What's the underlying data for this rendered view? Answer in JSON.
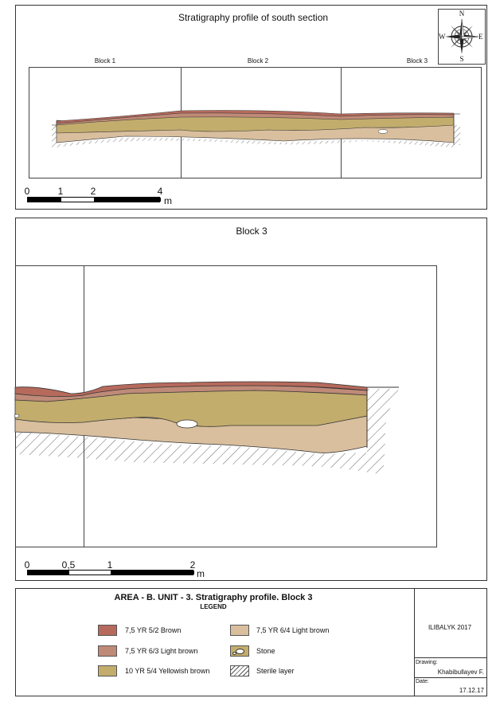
{
  "top_panel": {
    "title": "Stratigraphy profile of south section",
    "block_labels": [
      "Block 1",
      "Block 2",
      "Block 3"
    ],
    "scale": {
      "ticks": [
        "0",
        "1",
        "2",
        "4"
      ],
      "unit": "m"
    }
  },
  "compass": {
    "n": "N",
    "s": "S",
    "e": "E",
    "w": "W"
  },
  "detail_panel": {
    "title": "Block 3",
    "scale": {
      "ticks": [
        "0",
        "0,5",
        "1",
        "2"
      ],
      "unit": "m"
    }
  },
  "legend": {
    "title": "AREA - B. UNIT - 3. Stratigraphy profile. Block 3",
    "subtitle": "LEGEND",
    "items": [
      {
        "label": "7,5 YR 5/2 Brown",
        "color": "#b66a5c"
      },
      {
        "label": "7,5 YR 6/3 Light brown",
        "color": "#bf8a78"
      },
      {
        "label": "10 YR 5/4 Yellowish brown",
        "color": "#c3ad6d"
      },
      {
        "label": "7,5 YR 6/4 Light brown",
        "color": "#d9bf9e"
      },
      {
        "label": "Stone",
        "color": "#c3ad6d"
      },
      {
        "label": "Sterile layer",
        "color": "#ffffff"
      }
    ]
  },
  "info": {
    "site": "ILIBALYK 2017",
    "drawing_label": "Drawing:",
    "drawing_value": "Khabibullayev F.",
    "date_label": "Date:",
    "date_value": "17.12.17"
  },
  "colors": {
    "brown": "#b66a5c",
    "light_brown_63": "#bf8a78",
    "yellowish_brown": "#c3ad6d",
    "light_brown_64": "#d9bf9e"
  }
}
